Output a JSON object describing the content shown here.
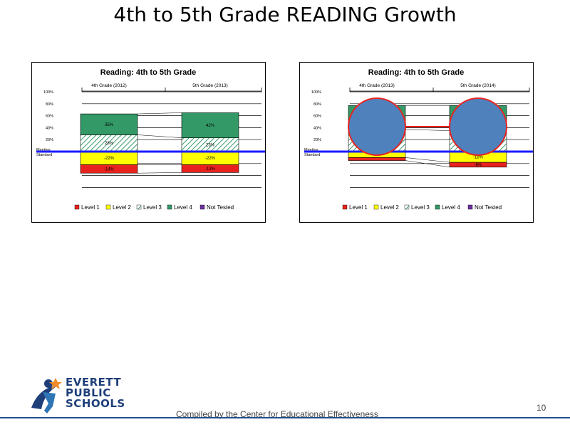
{
  "slide": {
    "title": "4th to 5th Grade READING Growth",
    "footer": "Compiled by the Center for Educational Effectiveness",
    "page_number": "10"
  },
  "logo": {
    "lines": [
      "EVERETT",
      "PUBLIC",
      "SCHOOLS"
    ]
  },
  "colors": {
    "level1": "#e8231f",
    "level2": "#ffff00",
    "level3": "#3a9a6a",
    "level4": "#339966",
    "not_tested": "#7030a0",
    "standard_line": "#1a1aff",
    "circle_fill": "#4f81bd",
    "circle_stroke": "#e8231f"
  },
  "y_axis_ticks": [
    "100%",
    "80%",
    "60%",
    "40%",
    "20%",
    "Meeting Standard"
  ],
  "legend": [
    "Level 1",
    "Level 2",
    "Level 3",
    "Level 4",
    "Not Tested"
  ],
  "chart_data": [
    {
      "type": "bar",
      "title": "Reading: 4th to 5th Grade",
      "categories": [
        "4th Grade (2012)",
        "5th Grade (2013)"
      ],
      "series": [
        {
          "name": "Level 4",
          "values": [
            35,
            42
          ]
        },
        {
          "name": "Level 3",
          "values": [
            28,
            23
          ]
        },
        {
          "name": "Level 2",
          "values": [
            -22,
            -22
          ]
        },
        {
          "name": "Level 1",
          "values": [
            -14,
            -13
          ]
        }
      ],
      "data_labels": [
        {
          "level4": "35%",
          "level3": "28%",
          "level2": "-22%",
          "level1": "-14%"
        },
        {
          "level4": "42%",
          "level3": "23%",
          "level2": "-22%",
          "level1": "-13%"
        }
      ],
      "ylim": [
        -60,
        100
      ],
      "circles": false
    },
    {
      "type": "bar",
      "title": "Reading: 4th to 5th Grade",
      "categories": [
        "4th Grade (2013)",
        "5th Grade (2014)"
      ],
      "series": [
        {
          "name": "Level 4",
          "values": [
            40,
            42
          ]
        },
        {
          "name": "Level 3",
          "values": [
            37,
            35
          ]
        },
        {
          "name": "Level 2",
          "values": [
            -10,
            -18
          ]
        },
        {
          "name": "Level 1",
          "values": [
            -5,
            -8
          ]
        }
      ],
      "data_labels": [
        {
          "level4": "",
          "level3": "",
          "level2": "",
          "level1": ""
        },
        {
          "level4": "",
          "level3": "",
          "level2": "-18%",
          "level1": "-8%"
        }
      ],
      "ylim": [
        -60,
        100
      ],
      "circles": true
    }
  ]
}
